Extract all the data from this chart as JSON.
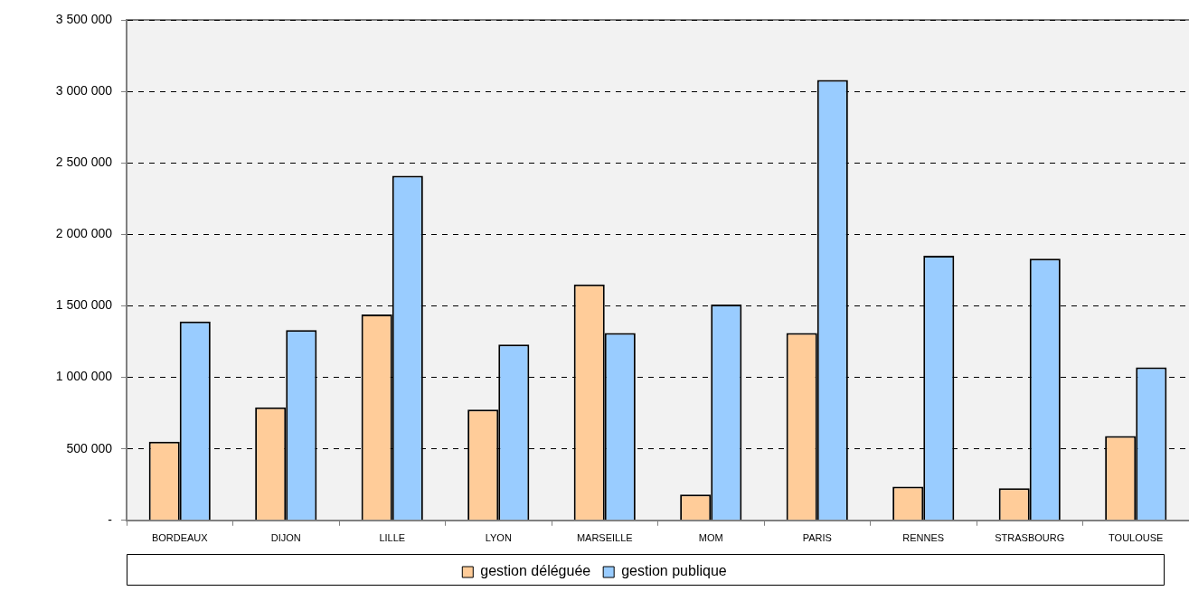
{
  "chart_data": {
    "type": "bar",
    "categories": [
      "BORDEAUX",
      "DIJON",
      "LILLE",
      "LYON",
      "MARSEILLE",
      "MOM",
      "PARIS",
      "RENNES",
      "STRASBOURG",
      "TOULOUSE"
    ],
    "series": [
      {
        "name": "gestion déléguée",
        "color": "#ffcc99",
        "values": [
          550000,
          790000,
          1440000,
          775000,
          1650000,
          180000,
          1310000,
          235000,
          225000,
          590000
        ]
      },
      {
        "name": "gestion publique",
        "color": "#99ccff",
        "values": [
          1390000,
          1330000,
          2410000,
          1230000,
          1310000,
          1510000,
          3080000,
          1850000,
          1830000,
          1070000
        ]
      }
    ],
    "ylim": [
      0,
      3500000
    ],
    "yticks": [
      {
        "value": 0,
        "label": "-"
      },
      {
        "value": 500000,
        "label": "500 000"
      },
      {
        "value": 1000000,
        "label": "1 000 000"
      },
      {
        "value": 1500000,
        "label": "1 500 000"
      },
      {
        "value": 2000000,
        "label": "2 000 000"
      },
      {
        "value": 2500000,
        "label": "2 500 000"
      },
      {
        "value": 3000000,
        "label": "3 000 000"
      },
      {
        "value": 3500000,
        "label": "3 500 000"
      }
    ],
    "grid": "y",
    "legend": "bottom"
  }
}
